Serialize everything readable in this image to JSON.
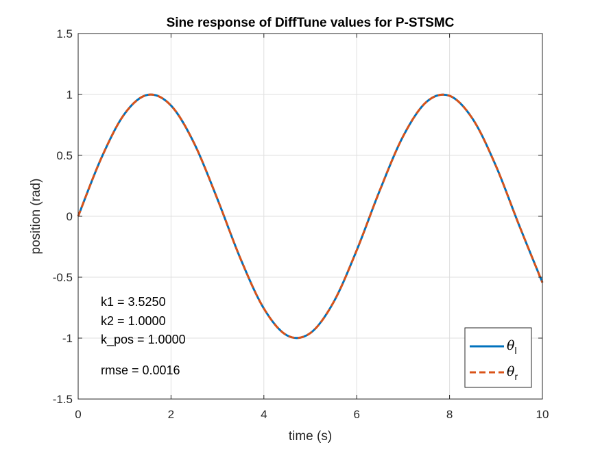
{
  "chart_data": {
    "type": "line",
    "title": "Sine response of DiffTune values for P-STSMC",
    "xlabel": "time (s)",
    "ylabel": "position (rad)",
    "xlim": [
      0,
      10
    ],
    "ylim": [
      -1.5,
      1.5
    ],
    "xticks": [
      0,
      2,
      4,
      6,
      8,
      10
    ],
    "yticks": [
      -1.5,
      -1,
      -0.5,
      0,
      0.5,
      1,
      1.5
    ],
    "xtick_labels": [
      "0",
      "2",
      "4",
      "6",
      "8",
      "10"
    ],
    "ytick_labels": [
      "-1.5",
      "-1",
      "-0.5",
      "0",
      "0.5",
      "1",
      "1.5"
    ],
    "grid": true,
    "legend_position": "bottom-right",
    "series": [
      {
        "name": "θl",
        "symbol": "θ",
        "subscript": "l",
        "color": "#0072BD",
        "style": "solid",
        "x": [
          0,
          0.5,
          1,
          1.5,
          2,
          2.5,
          3,
          3.5,
          4,
          4.5,
          5,
          5.5,
          6,
          6.5,
          7,
          7.5,
          8,
          8.5,
          9,
          9.5,
          10
        ],
        "y": [
          0,
          0.479,
          0.841,
          0.997,
          0.909,
          0.598,
          0.141,
          -0.351,
          -0.757,
          -0.978,
          -0.959,
          -0.706,
          -0.279,
          0.215,
          0.657,
          0.938,
          0.989,
          0.798,
          0.412,
          -0.075,
          -0.544
        ]
      },
      {
        "name": "θr",
        "symbol": "θ",
        "subscript": "r",
        "color": "#D95319",
        "style": "dashed",
        "x": [
          0,
          0.5,
          1,
          1.5,
          2,
          2.5,
          3,
          3.5,
          4,
          4.5,
          5,
          5.5,
          6,
          6.5,
          7,
          7.5,
          8,
          8.5,
          9,
          9.5,
          10
        ],
        "y": [
          0,
          0.479,
          0.841,
          0.997,
          0.909,
          0.598,
          0.141,
          -0.351,
          -0.757,
          -0.978,
          -0.959,
          -0.706,
          -0.279,
          0.215,
          0.657,
          0.938,
          0.989,
          0.798,
          0.412,
          -0.075,
          -0.544
        ]
      }
    ],
    "annotations": [
      "k1 = 3.5250",
      "k2 = 1.0000",
      "k_pos = 1.0000",
      "rmse = 0.0016"
    ]
  }
}
